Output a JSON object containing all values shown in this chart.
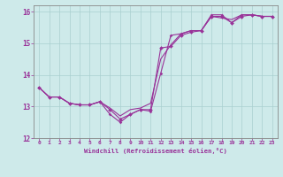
{
  "bg_color": "#ceeaea",
  "grid_color": "#aacfcf",
  "line_color": "#993399",
  "marker_color": "#993399",
  "xlabel": "Windchill (Refroidissement éolien,°C)",
  "xlim": [
    -0.5,
    23.5
  ],
  "ylim": [
    12,
    16.2
  ],
  "xticks": [
    0,
    1,
    2,
    3,
    4,
    5,
    6,
    7,
    8,
    9,
    10,
    11,
    12,
    13,
    14,
    15,
    16,
    17,
    18,
    19,
    20,
    21,
    22,
    23
  ],
  "yticks": [
    12,
    13,
    14,
    15,
    16
  ],
  "series1_x": [
    0,
    1,
    2,
    3,
    4,
    5,
    6,
    7,
    8,
    9,
    10,
    11,
    12,
    13,
    14,
    15,
    16,
    17,
    18,
    19,
    20,
    21,
    22,
    23
  ],
  "series1_y": [
    13.6,
    13.3,
    13.3,
    13.1,
    13.05,
    13.05,
    13.15,
    12.9,
    12.6,
    12.75,
    12.9,
    12.9,
    14.85,
    14.9,
    15.25,
    15.35,
    15.4,
    15.85,
    15.85,
    15.65,
    15.85,
    15.9,
    15.85,
    15.85
  ],
  "series2_x": [
    0,
    1,
    2,
    3,
    4,
    5,
    6,
    7,
    8,
    9,
    10,
    11,
    12,
    13,
    14,
    15,
    16,
    17,
    18,
    19,
    20,
    21,
    22,
    23
  ],
  "series2_y": [
    13.6,
    13.3,
    13.3,
    13.1,
    13.05,
    13.05,
    13.15,
    12.95,
    12.7,
    12.9,
    12.95,
    13.1,
    14.5,
    14.95,
    15.3,
    15.4,
    15.4,
    15.85,
    15.8,
    15.75,
    15.9,
    15.9,
    15.85,
    15.85
  ],
  "series3_x": [
    0,
    1,
    2,
    3,
    4,
    5,
    6,
    7,
    8,
    9,
    10,
    11,
    12,
    13,
    14,
    15,
    16,
    17,
    18,
    19,
    20,
    21,
    22,
    23
  ],
  "series3_y": [
    13.6,
    13.3,
    13.3,
    13.1,
    13.05,
    13.05,
    13.15,
    12.75,
    12.5,
    12.75,
    12.9,
    12.85,
    14.05,
    15.25,
    15.3,
    15.4,
    15.4,
    15.9,
    15.9,
    15.65,
    15.9,
    15.9,
    15.85,
    15.85
  ]
}
